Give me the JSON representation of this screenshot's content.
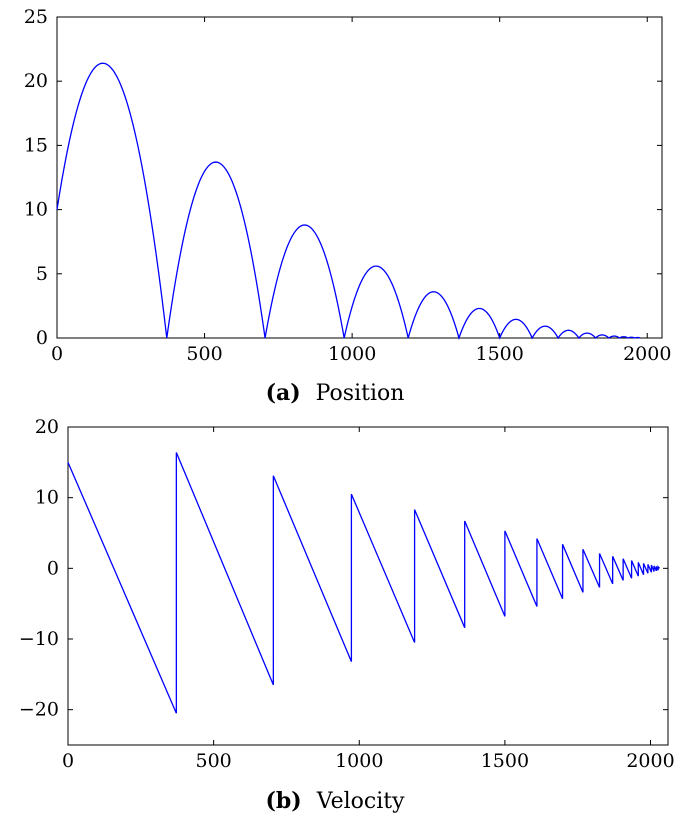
{
  "chart_data": [
    {
      "type": "line",
      "caption_label": "(a)",
      "caption_text": "Position",
      "xlim": [
        0,
        2050
      ],
      "ylim": [
        0,
        25
      ],
      "xticks": [
        0,
        500,
        1000,
        1500,
        2000
      ],
      "yticks": [
        0,
        5,
        10,
        15,
        20,
        25
      ],
      "line_color": "#0000ff",
      "grid": false,
      "bounces": [
        {
          "start": 0,
          "end": 372,
          "peak_x": 155,
          "peak_y": 21.4,
          "start_y": 10
        },
        {
          "start": 372,
          "end": 705,
          "peak_x": 538,
          "peak_y": 13.7
        },
        {
          "start": 705,
          "end": 973,
          "peak_x": 839,
          "peak_y": 8.8
        },
        {
          "start": 973,
          "end": 1190,
          "peak_x": 1081,
          "peak_y": 5.6
        },
        {
          "start": 1190,
          "end": 1362,
          "peak_x": 1276,
          "peak_y": 3.6
        },
        {
          "start": 1362,
          "end": 1500,
          "peak_x": 1431,
          "peak_y": 2.3
        },
        {
          "start": 1500,
          "end": 1610,
          "peak_x": 1555,
          "peak_y": 1.45
        },
        {
          "start": 1610,
          "end": 1698,
          "peak_x": 1654,
          "peak_y": 0.92
        },
        {
          "start": 1698,
          "end": 1768,
          "peak_x": 1733,
          "peak_y": 0.6
        },
        {
          "start": 1768,
          "end": 1825,
          "peak_x": 1796,
          "peak_y": 0.38
        },
        {
          "start": 1825,
          "end": 1870,
          "peak_x": 1847,
          "peak_y": 0.24
        },
        {
          "start": 1870,
          "end": 1906,
          "peak_x": 1888,
          "peak_y": 0.15
        },
        {
          "start": 1906,
          "end": 1935,
          "peak_x": 1920,
          "peak_y": 0.1
        },
        {
          "start": 1935,
          "end": 1958,
          "peak_x": 1946,
          "peak_y": 0.06
        },
        {
          "start": 1958,
          "end": 1976,
          "peak_x": 1967,
          "peak_y": 0.04
        }
      ]
    },
    {
      "type": "line",
      "caption_label": "(b)",
      "caption_text": "Velocity",
      "xlim": [
        0,
        2060
      ],
      "ylim": [
        -25,
        20
      ],
      "xticks": [
        0,
        500,
        1000,
        1500,
        2000
      ],
      "yticks": [
        -20,
        -10,
        0,
        10,
        20
      ],
      "ytick_labels": [
        "−20",
        "−10",
        "0",
        "10",
        "20"
      ],
      "line_color": "#0000ff",
      "grid": false,
      "segments": [
        {
          "x0": 0,
          "v0": 15,
          "x1": 372,
          "v1": -20.5
        },
        {
          "x0": 372,
          "v0": 16.4,
          "x1": 705,
          "v1": -16.5
        },
        {
          "x0": 705,
          "v0": 13.1,
          "x1": 973,
          "v1": -13.2
        },
        {
          "x0": 973,
          "v0": 10.5,
          "x1": 1190,
          "v1": -10.5
        },
        {
          "x0": 1190,
          "v0": 8.3,
          "x1": 1362,
          "v1": -8.4
        },
        {
          "x0": 1362,
          "v0": 6.7,
          "x1": 1500,
          "v1": -6.8
        },
        {
          "x0": 1500,
          "v0": 5.3,
          "x1": 1610,
          "v1": -5.4
        },
        {
          "x0": 1610,
          "v0": 4.2,
          "x1": 1698,
          "v1": -4.3
        },
        {
          "x0": 1698,
          "v0": 3.4,
          "x1": 1768,
          "v1": -3.4
        },
        {
          "x0": 1768,
          "v0": 2.7,
          "x1": 1825,
          "v1": -2.7
        },
        {
          "x0": 1825,
          "v0": 2.1,
          "x1": 1870,
          "v1": -2.2
        },
        {
          "x0": 1870,
          "v0": 1.7,
          "x1": 1906,
          "v1": -1.7
        },
        {
          "x0": 1906,
          "v0": 1.35,
          "x1": 1935,
          "v1": -1.4
        },
        {
          "x0": 1935,
          "v0": 1.1,
          "x1": 1958,
          "v1": -1.1
        },
        {
          "x0": 1958,
          "v0": 0.85,
          "x1": 1976,
          "v1": -0.9
        },
        {
          "x0": 1976,
          "v0": 0.7,
          "x1": 1991,
          "v1": -0.7
        },
        {
          "x0": 1991,
          "v0": 0.55,
          "x1": 2003,
          "v1": -0.55
        },
        {
          "x0": 2003,
          "v0": 0.45,
          "x1": 2012,
          "v1": -0.45
        },
        {
          "x0": 2012,
          "v0": 0.35,
          "x1": 2020,
          "v1": -0.35
        },
        {
          "x0": 2020,
          "v0": 0.28,
          "x1": 2026,
          "v1": -0.28
        },
        {
          "x0": 2026,
          "v0": 0.22,
          "x1": 2031,
          "v1": 0
        }
      ]
    }
  ]
}
